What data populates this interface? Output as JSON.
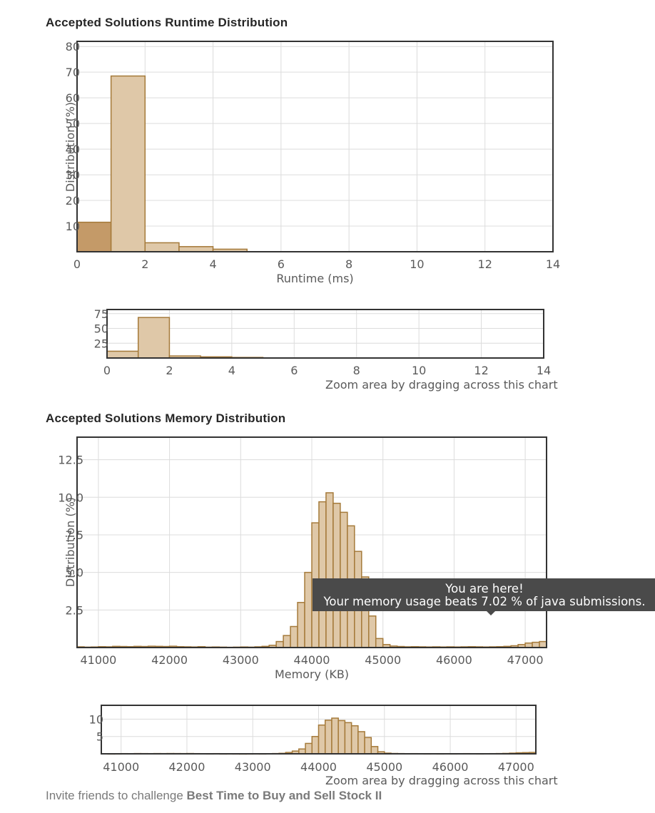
{
  "runtime_title": "Accepted Solutions Runtime Distribution",
  "memory_title": "Accepted Solutions Memory Distribution",
  "zoom_caption": "Zoom area by dragging across this chart",
  "invite_prefix": "Invite friends to challenge",
  "invite_problem": "Best Time to Buy and Sell Stock II",
  "tooltip": {
    "line1": "You are here!",
    "line2": "Your memory usage beats 7.02 % of java submissions."
  },
  "colors": {
    "bar_fill": "#dfc8a8",
    "bar_stroke": "#a57a3a",
    "highlight_fill": "#c49a68",
    "grid": "#dcdcdc",
    "frame": "#333333"
  },
  "chart_data": [
    {
      "id": "runtime-main",
      "type": "bar",
      "xlabel": "Runtime (ms)",
      "ylabel": "Distribution (%)",
      "xlim": [
        0,
        14
      ],
      "ylim": [
        0,
        82
      ],
      "xticks": [
        0,
        2,
        4,
        6,
        8,
        10,
        12,
        14
      ],
      "yticks": [
        10,
        20,
        30,
        40,
        50,
        60,
        70,
        80
      ],
      "bin_width": 1,
      "x": [
        0,
        1,
        2,
        3,
        4
      ],
      "values": [
        11.5,
        68.5,
        3.5,
        2,
        1
      ],
      "highlight_index": 0
    },
    {
      "id": "runtime-nav",
      "type": "bar",
      "xlim": [
        0,
        14
      ],
      "ylim": [
        0,
        82
      ],
      "xticks": [
        0,
        2,
        4,
        6,
        8,
        10,
        12,
        14
      ],
      "yticks": [
        25,
        50,
        75
      ],
      "bin_width": 1,
      "x": [
        0,
        1,
        2,
        3,
        4
      ],
      "values": [
        11.5,
        68.5,
        3.5,
        2,
        1
      ]
    },
    {
      "id": "memory-main",
      "type": "bar",
      "xlabel": "Memory (KB)",
      "ylabel": "Distribution (%)",
      "xlim": [
        40700,
        47300
      ],
      "ylim": [
        0,
        14
      ],
      "xticks": [
        41000,
        42000,
        43000,
        44000,
        45000,
        46000,
        47000
      ],
      "ytick_labels": [
        "2.5",
        "5.0",
        "7.5",
        "10.0",
        "12.5"
      ],
      "yticks": [
        2.5,
        5,
        7.5,
        10,
        12.5
      ],
      "bin_width": 100,
      "x": [
        40700,
        40800,
        40900,
        41000,
        41100,
        41200,
        41300,
        41400,
        41500,
        41600,
        41700,
        41800,
        41900,
        42000,
        42100,
        42200,
        42300,
        42400,
        42500,
        42600,
        42700,
        42800,
        42900,
        43000,
        43100,
        43200,
        43300,
        43400,
        43500,
        43600,
        43700,
        43800,
        43900,
        44000,
        44100,
        44200,
        44300,
        44400,
        44500,
        44600,
        44700,
        44800,
        44900,
        45000,
        45100,
        45200,
        45300,
        45400,
        45500,
        45600,
        45700,
        45800,
        45900,
        46000,
        46100,
        46200,
        46300,
        46400,
        46500,
        46600,
        46700,
        46800,
        46900,
        47000,
        47100,
        47200
      ],
      "values": [
        0.05,
        0.03,
        0.04,
        0.06,
        0.05,
        0.08,
        0.07,
        0.06,
        0.08,
        0.07,
        0.09,
        0.08,
        0.07,
        0.09,
        0.06,
        0.05,
        0.04,
        0.06,
        0.03,
        0.04,
        0.03,
        0.02,
        0.03,
        0.04,
        0.03,
        0.05,
        0.08,
        0.15,
        0.4,
        0.8,
        1.4,
        3.0,
        5.0,
        8.3,
        9.7,
        10.3,
        9.6,
        9.0,
        8.1,
        6.4,
        4.7,
        2.1,
        0.6,
        0.2,
        0.1,
        0.07,
        0.05,
        0.06,
        0.05,
        0.04,
        0.05,
        0.04,
        0.05,
        0.04,
        0.05,
        0.06,
        0.05,
        0.04,
        0.05,
        0.06,
        0.08,
        0.12,
        0.2,
        0.3,
        0.35,
        0.4
      ]
    },
    {
      "id": "memory-nav",
      "type": "bar",
      "xlim": [
        40700,
        47300
      ],
      "ylim": [
        0,
        14
      ],
      "xticks": [
        41000,
        42000,
        43000,
        44000,
        45000,
        46000,
        47000
      ],
      "yticks": [
        5,
        10
      ],
      "bin_width": 100,
      "x": [
        40700,
        40800,
        40900,
        41000,
        41100,
        41200,
        41300,
        41400,
        41500,
        41600,
        41700,
        41800,
        41900,
        42000,
        42100,
        42200,
        42300,
        42400,
        42500,
        42600,
        42700,
        42800,
        42900,
        43000,
        43100,
        43200,
        43300,
        43400,
        43500,
        43600,
        43700,
        43800,
        43900,
        44000,
        44100,
        44200,
        44300,
        44400,
        44500,
        44600,
        44700,
        44800,
        44900,
        45000,
        45100,
        45200,
        45300,
        45400,
        45500,
        45600,
        45700,
        45800,
        45900,
        46000,
        46100,
        46200,
        46300,
        46400,
        46500,
        46600,
        46700,
        46800,
        46900,
        47000,
        47100,
        47200
      ],
      "values": [
        0.05,
        0.03,
        0.04,
        0.06,
        0.05,
        0.08,
        0.07,
        0.06,
        0.08,
        0.07,
        0.09,
        0.08,
        0.07,
        0.09,
        0.06,
        0.05,
        0.04,
        0.06,
        0.03,
        0.04,
        0.03,
        0.02,
        0.03,
        0.04,
        0.03,
        0.05,
        0.08,
        0.15,
        0.4,
        0.8,
        1.4,
        3.0,
        5.0,
        8.3,
        9.7,
        10.3,
        9.6,
        9.0,
        8.1,
        6.4,
        4.7,
        2.1,
        0.6,
        0.2,
        0.1,
        0.07,
        0.05,
        0.06,
        0.05,
        0.04,
        0.05,
        0.04,
        0.05,
        0.04,
        0.05,
        0.06,
        0.05,
        0.04,
        0.05,
        0.06,
        0.08,
        0.12,
        0.2,
        0.3,
        0.35,
        0.4
      ]
    }
  ]
}
